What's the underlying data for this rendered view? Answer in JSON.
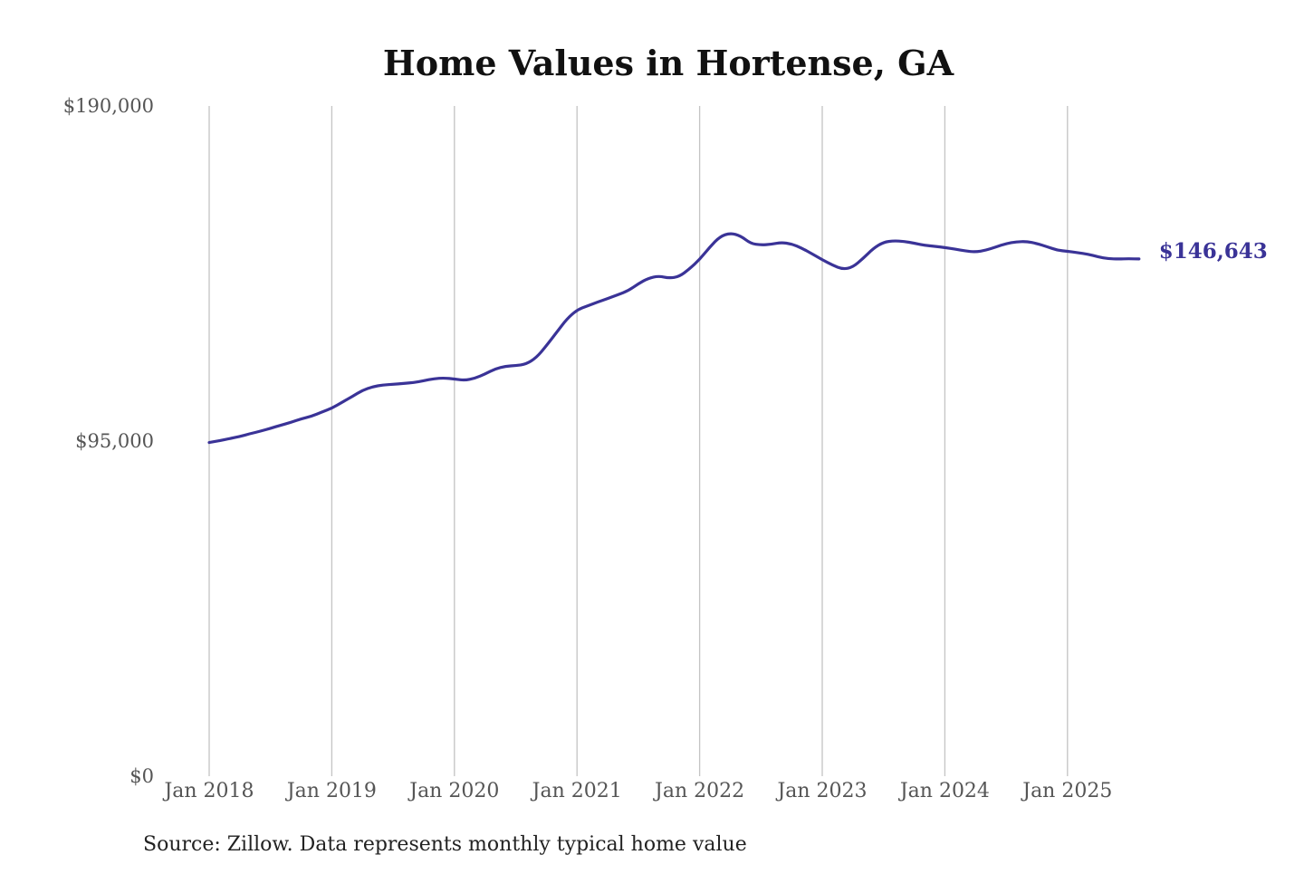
{
  "chart_data": {
    "type": "line",
    "title": "Home Values in Hortense, GA",
    "xlabel": "",
    "ylabel": "",
    "ylim": [
      0,
      190000
    ],
    "y_ticks": [
      "$0",
      "$95,000",
      "$190,000"
    ],
    "y_tick_values": [
      0,
      95000,
      190000
    ],
    "x_ticks": [
      "Jan 2018",
      "Jan 2019",
      "Jan 2020",
      "Jan 2021",
      "Jan 2022",
      "Jan 2023",
      "Jan 2024",
      "Jan 2025"
    ],
    "x_tick_dates": [
      "2018-01",
      "2019-01",
      "2020-01",
      "2021-01",
      "2022-01",
      "2023-01",
      "2024-01",
      "2025-01"
    ],
    "grid": "vertical",
    "end_label": "$146,643",
    "series": [
      {
        "color": "#3a3397",
        "points": [
          [
            "2018-01",
            94600
          ],
          [
            "2018-02",
            95100
          ],
          [
            "2018-03",
            95700
          ],
          [
            "2018-04",
            96300
          ],
          [
            "2018-05",
            97100
          ],
          [
            "2018-06",
            97800
          ],
          [
            "2018-07",
            98600
          ],
          [
            "2018-08",
            99500
          ],
          [
            "2018-09",
            100300
          ],
          [
            "2018-10",
            101300
          ],
          [
            "2018-11",
            102000
          ],
          [
            "2018-12",
            103200
          ],
          [
            "2019-01",
            104300
          ],
          [
            "2019-02",
            106000
          ],
          [
            "2019-03",
            107600
          ],
          [
            "2019-04",
            109400
          ],
          [
            "2019-05",
            110400
          ],
          [
            "2019-06",
            110900
          ],
          [
            "2019-07",
            111100
          ],
          [
            "2019-08",
            111300
          ],
          [
            "2019-09",
            111600
          ],
          [
            "2019-10",
            112100
          ],
          [
            "2019-11",
            112700
          ],
          [
            "2019-12",
            112900
          ],
          [
            "2020-01",
            112600
          ],
          [
            "2020-02",
            112200
          ],
          [
            "2020-03",
            112800
          ],
          [
            "2020-04",
            114000
          ],
          [
            "2020-05",
            115500
          ],
          [
            "2020-06",
            116200
          ],
          [
            "2020-07",
            116400
          ],
          [
            "2020-08",
            116800
          ],
          [
            "2020-09",
            118600
          ],
          [
            "2020-10",
            122000
          ],
          [
            "2020-11",
            125800
          ],
          [
            "2020-12",
            129600
          ],
          [
            "2021-01",
            132200
          ],
          [
            "2021-02",
            133300
          ],
          [
            "2021-03",
            134400
          ],
          [
            "2021-04",
            135400
          ],
          [
            "2021-05",
            136500
          ],
          [
            "2021-06",
            137600
          ],
          [
            "2021-07",
            139600
          ],
          [
            "2021-08",
            141200
          ],
          [
            "2021-09",
            141800
          ],
          [
            "2021-10",
            141200
          ],
          [
            "2021-11",
            141600
          ],
          [
            "2021-12",
            143800
          ],
          [
            "2022-01",
            146500
          ],
          [
            "2022-02",
            150000
          ],
          [
            "2022-03",
            153000
          ],
          [
            "2022-04",
            154000
          ],
          [
            "2022-05",
            153200
          ],
          [
            "2022-06",
            151000
          ],
          [
            "2022-07",
            150600
          ],
          [
            "2022-08",
            150800
          ],
          [
            "2022-09",
            151300
          ],
          [
            "2022-10",
            150900
          ],
          [
            "2022-11",
            149700
          ],
          [
            "2022-12",
            148100
          ],
          [
            "2023-01",
            146400
          ],
          [
            "2023-02",
            144900
          ],
          [
            "2023-03",
            143700
          ],
          [
            "2023-04",
            144300
          ],
          [
            "2023-05",
            146800
          ],
          [
            "2023-06",
            149600
          ],
          [
            "2023-07",
            151400
          ],
          [
            "2023-08",
            151800
          ],
          [
            "2023-09",
            151600
          ],
          [
            "2023-10",
            151100
          ],
          [
            "2023-11",
            150500
          ],
          [
            "2023-12",
            150200
          ],
          [
            "2024-01",
            149900
          ],
          [
            "2024-02",
            149400
          ],
          [
            "2024-03",
            148900
          ],
          [
            "2024-04",
            148600
          ],
          [
            "2024-05",
            149100
          ],
          [
            "2024-06",
            150000
          ],
          [
            "2024-07",
            151000
          ],
          [
            "2024-08",
            151500
          ],
          [
            "2024-09",
            151600
          ],
          [
            "2024-10",
            151000
          ],
          [
            "2024-11",
            150100
          ],
          [
            "2024-12",
            149100
          ],
          [
            "2025-01",
            148800
          ],
          [
            "2025-02",
            148400
          ],
          [
            "2025-03",
            148000
          ],
          [
            "2025-04",
            147200
          ],
          [
            "2025-05",
            146700
          ],
          [
            "2025-06",
            146600
          ],
          [
            "2025-07",
            146700
          ],
          [
            "2025-08",
            146643
          ]
        ]
      }
    ],
    "source_note": "Source: Zillow. Data represents monthly typical home value"
  }
}
